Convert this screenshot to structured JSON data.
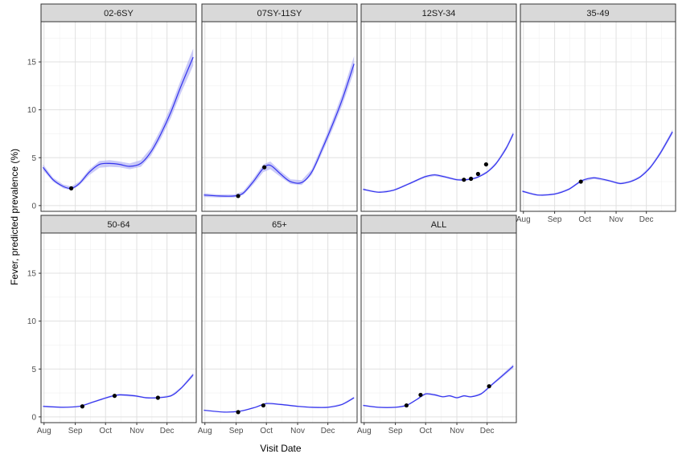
{
  "chart_data": {
    "type": "line",
    "title": "",
    "xlabel": "Visit Date",
    "ylabel": "Fever, predicted prevalence (%)",
    "x_tick_labels": [
      "Aug",
      "Sep",
      "Oct",
      "Nov",
      "Dec"
    ],
    "x_ticks": [
      "2020-08-01",
      "2020-09-01",
      "2020-10-01",
      "2020-11-01",
      "2020-12-01"
    ],
    "xlim": [
      "2020-07-29",
      "2020-12-30"
    ],
    "y_ticks": [
      0,
      5,
      10,
      15
    ],
    "ylim": [
      -0.6,
      19.2
    ],
    "grid": true,
    "facet_layout": "wrap, 4 columns, shared axes",
    "colors": {
      "line": "#3333ee",
      "ribbon": "#b3b3f5",
      "point": "#000000",
      "strip_fill": "#d9d9d9",
      "grid_major": "#e0e0e0",
      "grid_minor": "#f0f0f0"
    },
    "panels": [
      {
        "label": "02-6SY",
        "x": [
          "2020-07-31",
          "2020-08-10",
          "2020-08-20",
          "2020-08-28",
          "2020-09-05",
          "2020-09-15",
          "2020-09-25",
          "2020-10-05",
          "2020-10-15",
          "2020-10-25",
          "2020-11-05",
          "2020-11-15",
          "2020-11-25",
          "2020-12-05",
          "2020-12-15",
          "2020-12-27"
        ],
        "y": [
          4.0,
          2.7,
          2.0,
          1.8,
          2.3,
          3.5,
          4.3,
          4.4,
          4.3,
          4.1,
          4.4,
          5.6,
          7.5,
          9.8,
          12.5,
          15.5
        ],
        "band": [
          0.3,
          0.2,
          0.2,
          0.2,
          0.2,
          0.3,
          0.35,
          0.35,
          0.3,
          0.3,
          0.35,
          0.4,
          0.5,
          0.6,
          0.7,
          0.9
        ],
        "points": [
          {
            "x": "2020-08-28",
            "y": 1.8
          }
        ]
      },
      {
        "label": "07SY-11SY",
        "x": [
          "2020-07-31",
          "2020-08-15",
          "2020-08-30",
          "2020-09-08",
          "2020-09-18",
          "2020-09-28",
          "2020-10-05",
          "2020-10-15",
          "2020-10-25",
          "2020-11-05",
          "2020-11-15",
          "2020-11-25",
          "2020-12-05",
          "2020-12-15",
          "2020-12-27"
        ],
        "y": [
          1.1,
          1.0,
          1.0,
          1.3,
          2.5,
          3.9,
          4.2,
          3.3,
          2.5,
          2.4,
          3.5,
          5.8,
          8.3,
          11.0,
          14.8
        ],
        "band": [
          0.2,
          0.15,
          0.15,
          0.2,
          0.3,
          0.4,
          0.4,
          0.3,
          0.25,
          0.25,
          0.3,
          0.4,
          0.5,
          0.6,
          0.8
        ],
        "points": [
          {
            "x": "2020-09-03",
            "y": 1.0
          },
          {
            "x": "2020-09-29",
            "y": 4.0
          }
        ]
      },
      {
        "label": "12SY-34",
        "x": [
          "2020-07-31",
          "2020-08-15",
          "2020-08-30",
          "2020-09-15",
          "2020-09-30",
          "2020-10-10",
          "2020-10-20",
          "2020-11-01",
          "2020-11-10",
          "2020-11-20",
          "2020-12-01",
          "2020-12-10",
          "2020-12-20",
          "2020-12-27"
        ],
        "y": [
          1.7,
          1.4,
          1.6,
          2.3,
          3.0,
          3.2,
          3.0,
          2.7,
          2.7,
          2.9,
          3.5,
          4.4,
          6.0,
          7.5
        ],
        "band": [
          0.1,
          0.08,
          0.08,
          0.1,
          0.12,
          0.12,
          0.12,
          0.1,
          0.1,
          0.1,
          0.12,
          0.15,
          0.2,
          0.25
        ],
        "points": [
          {
            "x": "2020-11-08",
            "y": 2.7
          },
          {
            "x": "2020-11-15",
            "y": 2.8
          },
          {
            "x": "2020-11-22",
            "y": 3.3
          },
          {
            "x": "2020-11-30",
            "y": 4.3
          }
        ]
      },
      {
        "label": "35-49",
        "x": [
          "2020-07-31",
          "2020-08-15",
          "2020-09-01",
          "2020-09-15",
          "2020-09-28",
          "2020-10-10",
          "2020-10-25",
          "2020-11-05",
          "2020-11-15",
          "2020-11-25",
          "2020-12-05",
          "2020-12-15",
          "2020-12-27"
        ],
        "y": [
          1.5,
          1.1,
          1.2,
          1.7,
          2.6,
          2.9,
          2.6,
          2.3,
          2.5,
          3.0,
          4.0,
          5.5,
          7.7
        ],
        "band": [
          0.1,
          0.08,
          0.08,
          0.1,
          0.12,
          0.12,
          0.1,
          0.1,
          0.1,
          0.12,
          0.15,
          0.2,
          0.25
        ],
        "points": [
          {
            "x": "2020-09-27",
            "y": 2.5
          }
        ]
      },
      {
        "label": "50-64",
        "x": [
          "2020-07-31",
          "2020-08-20",
          "2020-09-05",
          "2020-09-20",
          "2020-10-05",
          "2020-10-15",
          "2020-10-30",
          "2020-11-10",
          "2020-11-22",
          "2020-12-05",
          "2020-12-15",
          "2020-12-27"
        ],
        "y": [
          1.1,
          1.0,
          1.1,
          1.6,
          2.1,
          2.3,
          2.2,
          2.0,
          2.0,
          2.2,
          3.0,
          4.4
        ],
        "band": [
          0.08,
          0.06,
          0.06,
          0.08,
          0.1,
          0.1,
          0.1,
          0.08,
          0.08,
          0.1,
          0.12,
          0.2
        ],
        "points": [
          {
            "x": "2020-09-08",
            "y": 1.1
          },
          {
            "x": "2020-10-10",
            "y": 2.2
          },
          {
            "x": "2020-11-22",
            "y": 2.0
          }
        ]
      },
      {
        "label": "65+",
        "x": [
          "2020-07-31",
          "2020-08-20",
          "2020-09-05",
          "2020-09-20",
          "2020-10-01",
          "2020-10-15",
          "2020-11-01",
          "2020-11-15",
          "2020-12-01",
          "2020-12-15",
          "2020-12-27"
        ],
        "y": [
          0.7,
          0.5,
          0.6,
          1.0,
          1.4,
          1.3,
          1.1,
          1.0,
          1.0,
          1.3,
          2.0
        ],
        "band": [
          0.06,
          0.05,
          0.05,
          0.06,
          0.08,
          0.08,
          0.07,
          0.07,
          0.07,
          0.08,
          0.12
        ],
        "points": [
          {
            "x": "2020-09-03",
            "y": 0.5
          },
          {
            "x": "2020-09-28",
            "y": 1.2
          }
        ]
      },
      {
        "label": "ALL",
        "x": [
          "2020-07-31",
          "2020-08-15",
          "2020-09-01",
          "2020-09-12",
          "2020-09-22",
          "2020-10-01",
          "2020-10-10",
          "2020-10-18",
          "2020-10-25",
          "2020-11-01",
          "2020-11-08",
          "2020-11-15",
          "2020-11-25",
          "2020-12-05",
          "2020-12-15",
          "2020-12-27"
        ],
        "y": [
          1.2,
          1.0,
          1.0,
          1.2,
          1.8,
          2.4,
          2.3,
          2.1,
          2.2,
          2.0,
          2.2,
          2.1,
          2.4,
          3.3,
          4.2,
          5.3
        ],
        "band": [
          0.06,
          0.05,
          0.05,
          0.06,
          0.08,
          0.1,
          0.1,
          0.08,
          0.08,
          0.08,
          0.08,
          0.08,
          0.1,
          0.12,
          0.15,
          0.2
        ],
        "points": [
          {
            "x": "2020-09-12",
            "y": 1.2
          },
          {
            "x": "2020-09-26",
            "y": 2.3
          },
          {
            "x": "2020-12-03",
            "y": 3.2
          }
        ]
      }
    ]
  }
}
